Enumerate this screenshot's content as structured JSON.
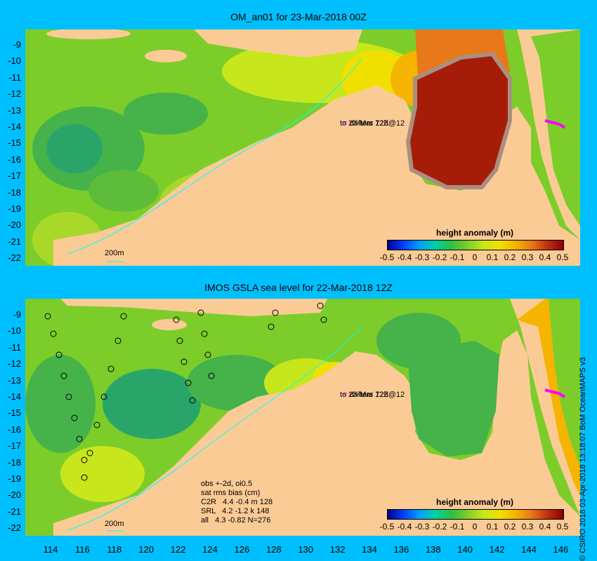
{
  "top_panel": {
    "title": "OM_an01 for 23-Mar-2018 00Z",
    "drifters_label_line1": "drifters 72h@12",
    "drifters_label_line2": "to 23-Mar 12Z",
    "isobath_label": "200m"
  },
  "bottom_panel": {
    "title": "IMOS GSLA sea level  for 22-Mar-2018 12Z",
    "drifters_label_line1": "drifters 72h@12",
    "drifters_label_line2": "to 23-Mar 12Z",
    "isobath_label": "200m",
    "stats": {
      "line1": "obs +-2d, oi0.5",
      "line2": "sat rms bias (cm)",
      "line3": "C2R   4.4 -0.4 m 128",
      "line4": "SRL   4.2 -1.2 k 148",
      "line5": "all   4.3 -0.82 N=276"
    }
  },
  "colorbar": {
    "title": "height anomaly (m)",
    "labels": [
      "-0.5",
      "-0.4",
      "-0.3",
      "-0.2",
      "-0.1",
      "0",
      "0.1",
      "0.2",
      "0.3",
      "0.4",
      "0.5"
    ]
  },
  "axes": {
    "latitudes": [
      "-9",
      "-10",
      "-11",
      "-12",
      "-13",
      "-14",
      "-15",
      "-16",
      "-17",
      "-18",
      "-19",
      "-20",
      "-21",
      "-22"
    ],
    "longitudes": [
      "114",
      "116",
      "118",
      "120",
      "122",
      "124",
      "126",
      "128",
      "130",
      "132",
      "134",
      "136",
      "138",
      "140",
      "142",
      "144",
      "146"
    ]
  },
  "credit": "© CSIRO 2018  03-Apr-2018 13:18:07 BoM OceanMAPS v3",
  "colors": {
    "background": "#00bfff",
    "land": "#fbcb96",
    "ocean_base": "#7ccd2a",
    "drifter_marker": "#ff00ff"
  }
}
